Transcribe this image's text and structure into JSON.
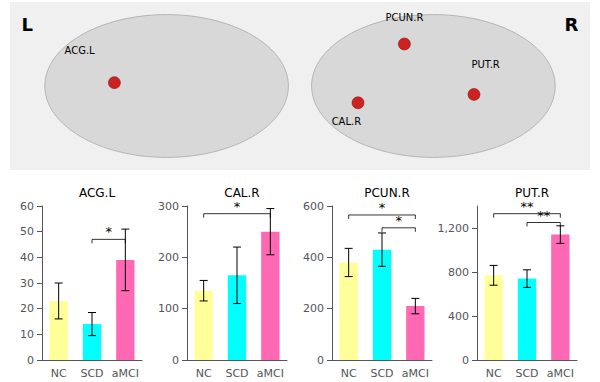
{
  "annotations": [
    "L",
    "R",
    "ACG.L",
    "CAL.R",
    "PCUN.R",
    "PUT.R"
  ],
  "chart_data": [
    {
      "type": "bar",
      "title": "ACG.L",
      "categories": [
        "NC",
        "SCD",
        "aMCI"
      ],
      "values": [
        23.0,
        14.0,
        39.0
      ],
      "errors": [
        7.0,
        4.5,
        12.0
      ],
      "colors": [
        "#FFFF99",
        "#00FFFF",
        "#FF69B4"
      ],
      "ylim": [
        0,
        60
      ],
      "yticks": [
        0,
        10,
        20,
        30,
        40,
        50,
        60
      ],
      "grid": false,
      "significance": [
        {
          "from": "SCD",
          "to": "aMCI",
          "y": 47,
          "label": "*"
        }
      ]
    },
    {
      "type": "bar",
      "title": "CAL.R",
      "categories": [
        "NC",
        "SCD",
        "aMCI"
      ],
      "values": [
        135.0,
        165.0,
        250.0
      ],
      "errors": [
        20.0,
        55.0,
        45.0
      ],
      "colors": [
        "#FFFF99",
        "#00FFFF",
        "#FF69B4"
      ],
      "ylim": [
        0,
        300
      ],
      "yticks": [
        0,
        100,
        200,
        300
      ],
      "grid": false,
      "significance": [
        {
          "from": "NC",
          "to": "aMCI",
          "y": 285,
          "label": "*"
        }
      ]
    },
    {
      "type": "bar",
      "title": "PCUN.R",
      "categories": [
        "NC",
        "SCD",
        "aMCI"
      ],
      "values": [
        380.0,
        430.0,
        210.0
      ],
      "errors": [
        55.0,
        65.0,
        30.0
      ],
      "colors": [
        "#FFFF99",
        "#00FFFF",
        "#FF69B4"
      ],
      "ylim": [
        0,
        600
      ],
      "yticks": [
        0,
        200,
        400,
        600
      ],
      "grid": false,
      "significance": [
        {
          "from": "NC",
          "to": "aMCI",
          "y": 565,
          "label": "*"
        },
        {
          "from": "SCD",
          "to": "aMCI",
          "y": 515,
          "label": "*"
        }
      ]
    },
    {
      "type": "bar",
      "title": "PUT.R",
      "categories": [
        "NC",
        "SCD",
        "aMCI"
      ],
      "values": [
        770.0,
        740.0,
        1140.0
      ],
      "errors": [
        90.0,
        80.0,
        80.0
      ],
      "colors": [
        "#FFFF99",
        "#00FFFF",
        "#FF69B4"
      ],
      "ylim": [
        0,
        1400
      ],
      "yticks": [
        0,
        400,
        800,
        1200
      ],
      "grid": false,
      "significance": [
        {
          "from": "NC",
          "to": "aMCI",
          "y": 1330,
          "label": "**"
        },
        {
          "from": "SCD",
          "to": "aMCI",
          "y": 1250,
          "label": "**"
        }
      ]
    }
  ]
}
